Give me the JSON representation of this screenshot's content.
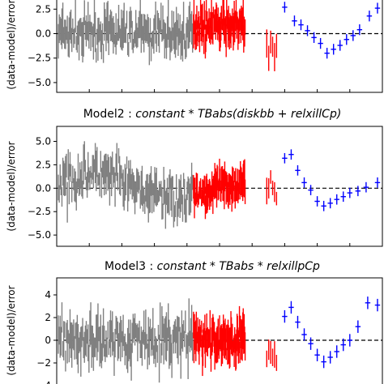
{
  "chart_data": [
    {
      "type": "scatter",
      "title_prefix": "",
      "title_expr": "",
      "ylabel": "(data-model)/error",
      "yticks": [
        2.5,
        0.0,
        -2.5,
        -5.0
      ],
      "tick_labels": [
        "2.5",
        "0.0",
        "−2.5",
        "−5.0"
      ],
      "ylim": [
        -6.0,
        3.6
      ],
      "xlim": [
        0,
        1
      ],
      "zero_line": true,
      "series": [
        {
          "color": "#808080",
          "values": []
        },
        {
          "color": "#ff0000",
          "values": []
        },
        {
          "color": "#0000ff",
          "points": [
            [
              0.7,
              2.7
            ],
            [
              0.73,
              1.3
            ],
            [
              0.75,
              0.9
            ],
            [
              0.77,
              0.3
            ],
            [
              0.79,
              -0.4
            ],
            [
              0.81,
              -1.0
            ],
            [
              0.83,
              -2.0
            ],
            [
              0.85,
              -1.6
            ],
            [
              0.87,
              -1.2
            ],
            [
              0.89,
              -0.6
            ],
            [
              0.91,
              -0.2
            ],
            [
              0.93,
              0.4
            ],
            [
              0.96,
              1.8
            ],
            [
              0.985,
              2.6
            ]
          ]
        }
      ]
    },
    {
      "type": "scatter",
      "title_prefix": "Model2 : ",
      "title_expr": "constant * TBabs(diskbb + relxillCp)",
      "ylabel": "(data-model)/error",
      "yticks": [
        5.0,
        2.5,
        0.0,
        -2.5,
        -5.0
      ],
      "tick_labels": [
        "5.0",
        "2.5",
        "0.0",
        "−2.5",
        "−5.0"
      ],
      "ylim": [
        -6.2,
        6.6
      ],
      "xlim": [
        0,
        1
      ],
      "zero_line": true,
      "series": [
        {
          "color": "#808080",
          "values": []
        },
        {
          "color": "#ff0000",
          "values": []
        },
        {
          "color": "#0000ff",
          "points": [
            [
              0.7,
              3.2
            ],
            [
              0.72,
              3.6
            ],
            [
              0.74,
              1.9
            ],
            [
              0.76,
              0.6
            ],
            [
              0.78,
              -0.2
            ],
            [
              0.8,
              -1.4
            ],
            [
              0.82,
              -1.9
            ],
            [
              0.84,
              -1.6
            ],
            [
              0.86,
              -1.2
            ],
            [
              0.88,
              -0.9
            ],
            [
              0.9,
              -0.5
            ],
            [
              0.925,
              -0.3
            ],
            [
              0.95,
              0.1
            ],
            [
              0.985,
              0.6
            ]
          ]
        }
      ]
    },
    {
      "type": "scatter",
      "title_prefix": "Model3 : ",
      "title_expr": "constant * TBabs * relxillpCp",
      "ylabel": "(data-model)/error",
      "yticks": [
        4,
        2,
        0,
        -2,
        -4
      ],
      "tick_labels": [
        "4",
        "2",
        "0",
        "−2",
        "−4"
      ],
      "ylim": [
        -4.5,
        5.5
      ],
      "xlim": [
        0,
        1
      ],
      "zero_line": true,
      "series": [
        {
          "color": "#808080",
          "values": []
        },
        {
          "color": "#ff0000",
          "values": []
        },
        {
          "color": "#0000ff",
          "points": [
            [
              0.7,
              2.1
            ],
            [
              0.72,
              2.9
            ],
            [
              0.74,
              1.6
            ],
            [
              0.76,
              0.5
            ],
            [
              0.78,
              -0.3
            ],
            [
              0.8,
              -1.3
            ],
            [
              0.82,
              -1.9
            ],
            [
              0.84,
              -1.5
            ],
            [
              0.86,
              -1.0
            ],
            [
              0.88,
              -0.4
            ],
            [
              0.9,
              0.0
            ],
            [
              0.925,
              1.2
            ],
            [
              0.955,
              3.3
            ],
            [
              0.985,
              3.1
            ]
          ]
        }
      ]
    }
  ]
}
